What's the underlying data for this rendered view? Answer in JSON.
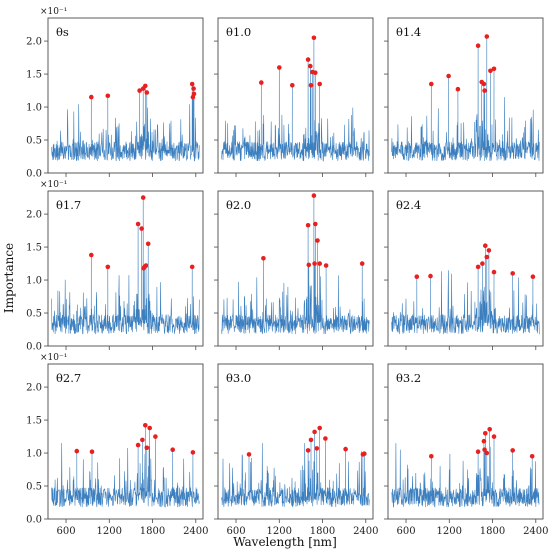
{
  "figure": {
    "ylabel": "Importance",
    "xlabel": "Wavelength [nm]",
    "y_multiplier": "×10⁻¹",
    "x_ticks": [
      600,
      1200,
      1800,
      2400
    ],
    "y_ticks": [
      "0.0",
      "0.5",
      "1.0",
      "1.5",
      "2.0"
    ],
    "colors": {
      "line": "#3b7fbf",
      "marker": "#e8201f",
      "frame": "#4a4a4a"
    }
  },
  "chart_data": [
    {
      "type": "line",
      "title": "θs",
      "x_range": [
        350,
        2500
      ],
      "ylim": [
        0,
        2.35
      ],
      "highlighted_points": [
        {
          "x": 950,
          "y": 1.15
        },
        {
          "x": 1180,
          "y": 1.17
        },
        {
          "x": 1620,
          "y": 1.25
        },
        {
          "x": 1670,
          "y": 1.28
        },
        {
          "x": 1700,
          "y": 1.32
        },
        {
          "x": 1720,
          "y": 1.22
        },
        {
          "x": 2350,
          "y": 1.35
        },
        {
          "x": 2370,
          "y": 1.28
        },
        {
          "x": 2360,
          "y": 1.15
        },
        {
          "x": 2375,
          "y": 1.2
        }
      ]
    },
    {
      "type": "line",
      "title": "θ1.0",
      "x_range": [
        350,
        2500
      ],
      "ylim": [
        0,
        2.35
      ],
      "highlighted_points": [
        {
          "x": 950,
          "y": 1.37
        },
        {
          "x": 1200,
          "y": 1.6
        },
        {
          "x": 1380,
          "y": 1.33
        },
        {
          "x": 1600,
          "y": 1.72
        },
        {
          "x": 1630,
          "y": 1.62
        },
        {
          "x": 1660,
          "y": 1.53
        },
        {
          "x": 1680,
          "y": 2.05
        },
        {
          "x": 1700,
          "y": 1.52
        },
        {
          "x": 1760,
          "y": 1.35
        },
        {
          "x": 1640,
          "y": 1.33
        }
      ]
    },
    {
      "type": "line",
      "title": "θ1.4",
      "x_range": [
        350,
        2500
      ],
      "ylim": [
        0,
        2.35
      ],
      "highlighted_points": [
        {
          "x": 950,
          "y": 1.35
        },
        {
          "x": 1190,
          "y": 1.47
        },
        {
          "x": 1320,
          "y": 1.27
        },
        {
          "x": 1600,
          "y": 1.93
        },
        {
          "x": 1650,
          "y": 1.38
        },
        {
          "x": 1680,
          "y": 1.35
        },
        {
          "x": 1690,
          "y": 1.25
        },
        {
          "x": 1720,
          "y": 2.07
        },
        {
          "x": 1770,
          "y": 1.55
        },
        {
          "x": 1820,
          "y": 1.58
        }
      ]
    },
    {
      "type": "line",
      "title": "θ1.7",
      "x_range": [
        350,
        2500
      ],
      "ylim": [
        0,
        2.35
      ],
      "highlighted_points": [
        {
          "x": 950,
          "y": 1.38
        },
        {
          "x": 1180,
          "y": 1.2
        },
        {
          "x": 1600,
          "y": 1.85
        },
        {
          "x": 1650,
          "y": 1.78
        },
        {
          "x": 1670,
          "y": 2.25
        },
        {
          "x": 1690,
          "y": 1.2
        },
        {
          "x": 1710,
          "y": 1.22
        },
        {
          "x": 1740,
          "y": 1.55
        },
        {
          "x": 2350,
          "y": 1.2
        },
        {
          "x": 1675,
          "y": 1.18
        }
      ]
    },
    {
      "type": "line",
      "title": "θ2.0",
      "x_range": [
        350,
        2500
      ],
      "ylim": [
        0,
        2.35
      ],
      "highlighted_points": [
        {
          "x": 980,
          "y": 1.33
        },
        {
          "x": 1600,
          "y": 1.83
        },
        {
          "x": 1610,
          "y": 1.23
        },
        {
          "x": 1680,
          "y": 2.28
        },
        {
          "x": 1700,
          "y": 1.85
        },
        {
          "x": 1730,
          "y": 1.6
        },
        {
          "x": 1760,
          "y": 1.25
        },
        {
          "x": 1850,
          "y": 1.22
        },
        {
          "x": 2350,
          "y": 1.25
        },
        {
          "x": 1690,
          "y": 1.25
        }
      ]
    },
    {
      "type": "line",
      "title": "θ2.4",
      "x_range": [
        350,
        2500
      ],
      "ylim": [
        0,
        2.35
      ],
      "highlighted_points": [
        {
          "x": 750,
          "y": 1.05
        },
        {
          "x": 940,
          "y": 1.06
        },
        {
          "x": 1600,
          "y": 1.2
        },
        {
          "x": 1660,
          "y": 1.25
        },
        {
          "x": 1700,
          "y": 1.52
        },
        {
          "x": 1750,
          "y": 1.45
        },
        {
          "x": 1720,
          "y": 1.35
        },
        {
          "x": 1820,
          "y": 1.12
        },
        {
          "x": 2080,
          "y": 1.1
        },
        {
          "x": 2360,
          "y": 1.05
        }
      ]
    },
    {
      "type": "line",
      "title": "θ2.7",
      "x_range": [
        350,
        2500
      ],
      "ylim": [
        0,
        2.35
      ],
      "highlighted_points": [
        {
          "x": 750,
          "y": 1.03
        },
        {
          "x": 960,
          "y": 1.02
        },
        {
          "x": 1600,
          "y": 1.12
        },
        {
          "x": 1660,
          "y": 1.2
        },
        {
          "x": 1700,
          "y": 1.42
        },
        {
          "x": 1720,
          "y": 1.08
        },
        {
          "x": 1760,
          "y": 1.38
        },
        {
          "x": 1840,
          "y": 1.25
        },
        {
          "x": 2080,
          "y": 1.05
        },
        {
          "x": 2360,
          "y": 1.01
        }
      ]
    },
    {
      "type": "line",
      "title": "θ3.0",
      "x_range": [
        350,
        2500
      ],
      "ylim": [
        0,
        2.35
      ],
      "highlighted_points": [
        {
          "x": 780,
          "y": 0.98
        },
        {
          "x": 1600,
          "y": 1.04
        },
        {
          "x": 1640,
          "y": 1.2
        },
        {
          "x": 1690,
          "y": 1.32
        },
        {
          "x": 1720,
          "y": 1.07
        },
        {
          "x": 1760,
          "y": 1.38
        },
        {
          "x": 1840,
          "y": 1.22
        },
        {
          "x": 2120,
          "y": 1.06
        },
        {
          "x": 2360,
          "y": 0.98
        },
        {
          "x": 2380,
          "y": 0.99
        }
      ]
    },
    {
      "type": "line",
      "title": "θ3.2",
      "x_range": [
        350,
        2500
      ],
      "ylim": [
        0,
        2.35
      ],
      "highlighted_points": [
        {
          "x": 950,
          "y": 0.95
        },
        {
          "x": 1600,
          "y": 1.02
        },
        {
          "x": 1680,
          "y": 1.18
        },
        {
          "x": 1700,
          "y": 1.3
        },
        {
          "x": 1720,
          "y": 1.0
        },
        {
          "x": 1760,
          "y": 1.36
        },
        {
          "x": 1820,
          "y": 1.25
        },
        {
          "x": 2080,
          "y": 1.04
        },
        {
          "x": 2350,
          "y": 0.95
        },
        {
          "x": 1690,
          "y": 1.05
        }
      ]
    }
  ]
}
